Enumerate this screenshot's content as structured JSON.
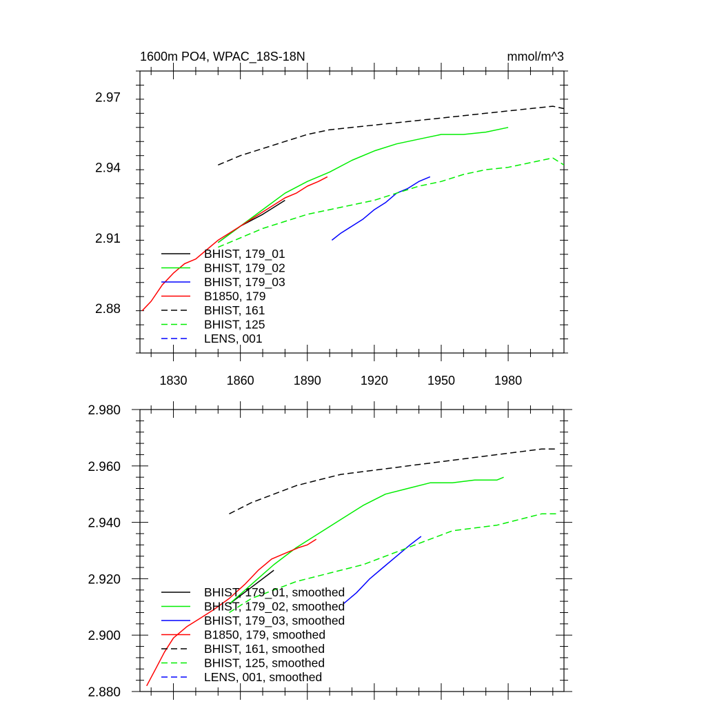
{
  "chart_data": [
    {
      "type": "line",
      "title": "1600m PO4, WPAC_18S-18N",
      "units": "mmol/m^3",
      "xlim": [
        1815,
        2005
      ],
      "ylim": [
        2.861,
        2.981
      ],
      "x_ticks": [
        "1830",
        "1860",
        "1890",
        "1920",
        "1950",
        "1980"
      ],
      "y_ticks": [
        "2.88",
        "2.91",
        "2.94",
        "2.97"
      ],
      "legend_position": "lower-left",
      "legend": [
        "BHIST, 179_01",
        "BHIST, 179_02",
        "BHIST, 179_03",
        "B1850, 179",
        "BHIST, 161",
        "BHIST, 125",
        "LENS, 001"
      ],
      "series": [
        {
          "name": "BHIST, 179_01",
          "color": "#000000",
          "dash": false,
          "x": [
            1850,
            1860,
            1870,
            1880
          ],
          "y": [
            2.908,
            2.915,
            2.92,
            2.926
          ]
        },
        {
          "name": "BHIST, 179_02",
          "color": "#00ee00",
          "dash": false,
          "x": [
            1850,
            1860,
            1870,
            1880,
            1890,
            1900,
            1910,
            1920,
            1930,
            1940,
            1950,
            1960,
            1970,
            1980
          ],
          "y": [
            2.908,
            2.915,
            2.922,
            2.929,
            2.934,
            2.938,
            2.943,
            2.947,
            2.95,
            2.952,
            2.954,
            2.954,
            2.955,
            2.957
          ]
        },
        {
          "name": "BHIST, 179_03",
          "color": "#0000ff",
          "dash": false,
          "x": [
            1901,
            1905,
            1910,
            1915,
            1920,
            1925,
            1930,
            1935,
            1940,
            1945
          ],
          "y": [
            2.909,
            2.912,
            2.915,
            2.918,
            2.922,
            2.925,
            2.929,
            2.931,
            2.934,
            2.936
          ]
        },
        {
          "name": "B1850, 179",
          "color": "#ff0000",
          "dash": false,
          "x": [
            1816,
            1820,
            1825,
            1830,
            1835,
            1840,
            1845,
            1850,
            1855,
            1860,
            1865,
            1870,
            1875,
            1880,
            1885,
            1890,
            1895,
            1899
          ],
          "y": [
            2.879,
            2.883,
            2.89,
            2.895,
            2.899,
            2.901,
            2.905,
            2.909,
            2.912,
            2.915,
            2.918,
            2.921,
            2.924,
            2.927,
            2.929,
            2.932,
            2.934,
            2.936
          ]
        },
        {
          "name": "BHIST, 161",
          "color": "#000000",
          "dash": true,
          "x": [
            1850,
            1860,
            1870,
            1880,
            1890,
            1900,
            1910,
            1920,
            1930,
            1940,
            1950,
            1960,
            1970,
            1980,
            1990,
            2000,
            2005
          ],
          "y": [
            2.941,
            2.945,
            2.948,
            2.951,
            2.954,
            2.956,
            2.957,
            2.958,
            2.959,
            2.96,
            2.961,
            2.962,
            2.963,
            2.964,
            2.965,
            2.966,
            2.965
          ]
        },
        {
          "name": "BHIST, 125",
          "color": "#00ee00",
          "dash": true,
          "x": [
            1850,
            1860,
            1870,
            1880,
            1890,
            1900,
            1910,
            1920,
            1930,
            1940,
            1950,
            1960,
            1970,
            1980,
            1990,
            2000,
            2005
          ],
          "y": [
            2.906,
            2.91,
            2.914,
            2.917,
            2.92,
            2.922,
            2.924,
            2.926,
            2.929,
            2.932,
            2.934,
            2.937,
            2.939,
            2.94,
            2.942,
            2.944,
            2.941
          ]
        }
      ]
    },
    {
      "type": "line",
      "title": "",
      "xlim": [
        1815,
        2005
      ],
      "ylim": [
        2.88,
        2.98
      ],
      "y_ticks": [
        "2.880",
        "2.900",
        "2.920",
        "2.940",
        "2.960",
        "2.980"
      ],
      "legend_position": "lower-left",
      "legend": [
        "BHIST, 179_01, smoothed",
        "BHIST, 179_02, smoothed",
        "BHIST, 179_03, smoothed",
        "B1850, 179, smoothed",
        "BHIST, 161, smoothed",
        "BHIST, 125, smoothed",
        "LENS, 001, smoothed"
      ],
      "series": [
        {
          "name": "BHIST, 179_01, smoothed",
          "color": "#000000",
          "dash": false,
          "x": [
            1855,
            1865,
            1875
          ],
          "y": [
            2.911,
            2.917,
            2.923
          ]
        },
        {
          "name": "BHIST, 179_02, smoothed",
          "color": "#00ee00",
          "dash": false,
          "x": [
            1855,
            1865,
            1875,
            1885,
            1895,
            1905,
            1915,
            1925,
            1935,
            1945,
            1955,
            1965,
            1975,
            1978
          ],
          "y": [
            2.911,
            2.918,
            2.925,
            2.931,
            2.936,
            2.941,
            2.946,
            2.95,
            2.952,
            2.954,
            2.954,
            2.955,
            2.955,
            2.956
          ]
        },
        {
          "name": "BHIST, 179_03, smoothed",
          "color": "#0000ff",
          "dash": false,
          "x": [
            1906,
            1912,
            1918,
            1924,
            1930,
            1936,
            1941
          ],
          "y": [
            2.911,
            2.915,
            2.92,
            2.924,
            2.928,
            2.932,
            2.935
          ]
        },
        {
          "name": "B1850, 179, smoothed",
          "color": "#ff0000",
          "dash": false,
          "x": [
            1818,
            1822,
            1826,
            1830,
            1836,
            1842,
            1848,
            1855,
            1862,
            1868,
            1874,
            1880,
            1886,
            1890,
            1894
          ],
          "y": [
            2.882,
            2.888,
            2.894,
            2.899,
            2.903,
            2.906,
            2.909,
            2.913,
            2.918,
            2.923,
            2.927,
            2.929,
            2.931,
            2.932,
            2.934
          ]
        },
        {
          "name": "BHIST, 161, smoothed",
          "color": "#000000",
          "dash": true,
          "x": [
            1855,
            1865,
            1875,
            1885,
            1895,
            1905,
            1915,
            1925,
            1935,
            1945,
            1955,
            1965,
            1975,
            1985,
            1995,
            2002
          ],
          "y": [
            2.943,
            2.947,
            2.95,
            2.953,
            2.955,
            2.957,
            2.958,
            2.959,
            2.96,
            2.961,
            2.962,
            2.963,
            2.964,
            2.965,
            2.966,
            2.966
          ]
        },
        {
          "name": "BHIST, 125, smoothed",
          "color": "#00ee00",
          "dash": true,
          "x": [
            1855,
            1865,
            1875,
            1885,
            1895,
            1905,
            1915,
            1925,
            1935,
            1945,
            1955,
            1965,
            1975,
            1985,
            1995,
            2002
          ],
          "y": [
            2.908,
            2.913,
            2.916,
            2.919,
            2.921,
            2.923,
            2.925,
            2.928,
            2.931,
            2.934,
            2.937,
            2.938,
            2.939,
            2.941,
            2.943,
            2.943
          ]
        }
      ]
    }
  ]
}
